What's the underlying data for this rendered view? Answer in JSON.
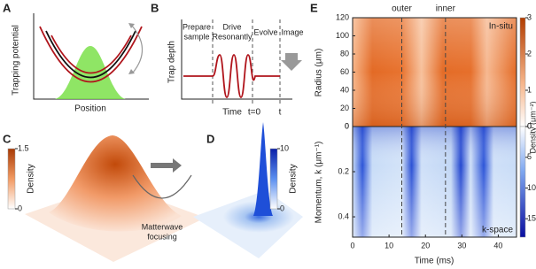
{
  "panels": {
    "a": {
      "label": "A",
      "ylabel": "Trapping potential",
      "xlabel": "Position"
    },
    "b": {
      "label": "B",
      "ylabel": "Trap depth",
      "phases": [
        [
          "Prepare",
          "sample"
        ],
        [
          "Drive",
          "Resonantly"
        ],
        [
          "Evolve"
        ],
        [
          "Image"
        ]
      ],
      "xlabel": "Time",
      "t0": "t=0",
      "t": "t"
    },
    "c": {
      "label": "C",
      "colorbar": {
        "label": "Density",
        "lim": [
          0,
          1.5
        ],
        "ticks": [
          0,
          1.5
        ]
      }
    },
    "focus": [
      "Matterwave",
      "focusing"
    ],
    "d": {
      "label": "D",
      "colorbar": {
        "label": "Density",
        "lim": [
          0,
          10
        ],
        "ticks": [
          0,
          10
        ]
      }
    },
    "e": {
      "label": "E",
      "xlabel": "Time (ms)",
      "xlim": [
        0,
        45
      ],
      "xticks": [
        0,
        10,
        20,
        30,
        40
      ],
      "markers": [
        {
          "label": "outer",
          "value": 13.5
        },
        {
          "label": "inner",
          "value": 25.5
        }
      ],
      "colorbar_label": "Density (μm⁻²)",
      "top": {
        "annotation": "In-situ",
        "ylabel": "Radius (μm)",
        "ylim": [
          0,
          120
        ],
        "yticks": [
          0,
          20,
          40,
          60,
          80,
          100,
          120
        ],
        "colorbar": {
          "lim": [
            0,
            3
          ],
          "ticks": [
            0,
            1,
            2,
            3
          ]
        }
      },
      "bottom": {
        "annotation": "k-space",
        "ylabel": "Momentum, k (μm⁻¹)",
        "ylim": [
          0,
          0.49
        ],
        "yticks": [
          0,
          0.2,
          0.4
        ],
        "colorbar": {
          "lim": [
            0,
            18
          ],
          "ticks": [
            0,
            5,
            10,
            15
          ]
        }
      }
    }
  }
}
